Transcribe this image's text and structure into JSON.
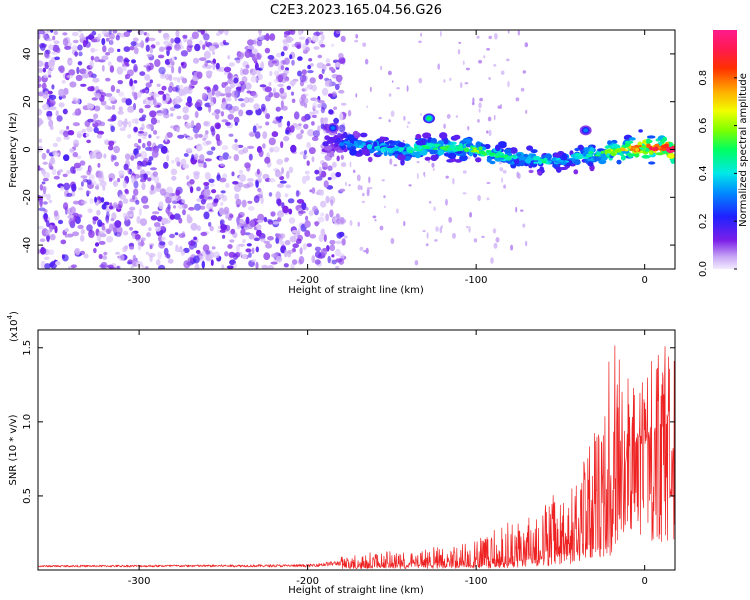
{
  "figure_title": "C2E3.2023.165.04.56.G26",
  "colors": {
    "snr_line": "#ee2222",
    "background": "#ffffff",
    "axis": "#000000"
  },
  "chart_data": [
    {
      "type": "heatmap",
      "title": "C2E3.2023.165.04.56.G26",
      "xlabel": "Height of straight line (km)",
      "ylabel": "Frequency (Hz)",
      "xlim": [
        -360,
        18
      ],
      "ylim": [
        -50,
        50
      ],
      "x_ticks": [
        -300,
        -200,
        -100,
        0
      ],
      "y_ticks": [
        -40,
        -20,
        0,
        20,
        40
      ],
      "x_tick_labels": [
        "-300",
        "-200",
        "-100",
        "0"
      ],
      "y_tick_labels": [
        "-40",
        "-20",
        "0",
        "20",
        "40"
      ],
      "grid": false,
      "colorbar": {
        "label": "Normalized spectral amplitude",
        "range": [
          0.0,
          1.0
        ],
        "ticks": [
          0.0,
          0.2,
          0.4,
          0.6,
          0.8
        ],
        "tick_labels": [
          "0.0",
          "0.2",
          "0.4",
          "0.6",
          "0.8"
        ],
        "colormap": "rainbow (purple to magenta)"
      },
      "noise_region_x": [
        -360,
        -178
      ],
      "noise_amplitude_range": [
        0.02,
        0.12
      ],
      "signal_ridge": {
        "x": [
          -190,
          -180,
          -170,
          -160,
          -150,
          -140,
          -130,
          -120,
          -110,
          -100,
          -90,
          -80,
          -70,
          -60,
          -50,
          -40,
          -30,
          -20,
          -10,
          0,
          10,
          18
        ],
        "frequency": [
          3,
          3,
          2,
          1,
          0,
          0,
          1,
          1,
          1,
          0,
          -2,
          -3,
          -4,
          -5,
          -5,
          -3,
          -2,
          -1,
          0,
          1,
          1,
          0
        ],
        "amplitude": [
          0.15,
          0.25,
          0.3,
          0.35,
          0.35,
          0.4,
          0.4,
          0.45,
          0.4,
          0.5,
          0.45,
          0.4,
          0.35,
          0.4,
          0.3,
          0.35,
          0.4,
          0.55,
          0.6,
          0.75,
          0.8,
          0.9
        ]
      },
      "features": [
        {
          "x": -128,
          "frequency": 13,
          "amplitude": 0.5
        },
        {
          "x": -185,
          "frequency": 9,
          "amplitude": 0.3
        },
        {
          "x": -35,
          "frequency": 8,
          "amplitude": 0.3
        }
      ]
    },
    {
      "type": "line",
      "xlabel": "Height of straight line (km)",
      "ylabel": "SNR (10 * v/v)",
      "y_multiplier": "(x10",
      "y_multiplier_exp": "4",
      "y_multiplier_close": ")",
      "xlim": [
        -360,
        18
      ],
      "ylim": [
        0,
        1.62
      ],
      "x_ticks": [
        -300,
        -200,
        -100,
        0
      ],
      "y_ticks": [
        0.5,
        1.0,
        1.5
      ],
      "x_tick_labels": [
        "-300",
        "-200",
        "-100",
        "0"
      ],
      "y_tick_labels": [
        "0.5",
        "1.0",
        "1.5"
      ],
      "grid": false,
      "envelope": {
        "x": [
          -360,
          -200,
          -180,
          -160,
          -140,
          -120,
          -100,
          -90,
          -80,
          -70,
          -60,
          -50,
          -40,
          -30,
          -25,
          -20,
          -15,
          -12,
          -10,
          -5,
          0,
          5,
          10,
          18
        ],
        "base": [
          0.02,
          0.02,
          0.03,
          0.04,
          0.04,
          0.05,
          0.05,
          0.06,
          0.08,
          0.1,
          0.12,
          0.15,
          0.2,
          0.3,
          0.4,
          0.5,
          0.6,
          0.7,
          0.75,
          0.8,
          0.85,
          0.9,
          0.95,
          1.05
        ],
        "peak": [
          0.04,
          0.05,
          0.09,
          0.13,
          0.12,
          0.17,
          0.2,
          0.3,
          0.35,
          0.38,
          0.45,
          0.55,
          0.6,
          0.95,
          1.0,
          1.6,
          1.62,
          1.45,
          1.4,
          1.2,
          1.3,
          1.45,
          1.55,
          1.45
        ]
      }
    }
  ]
}
